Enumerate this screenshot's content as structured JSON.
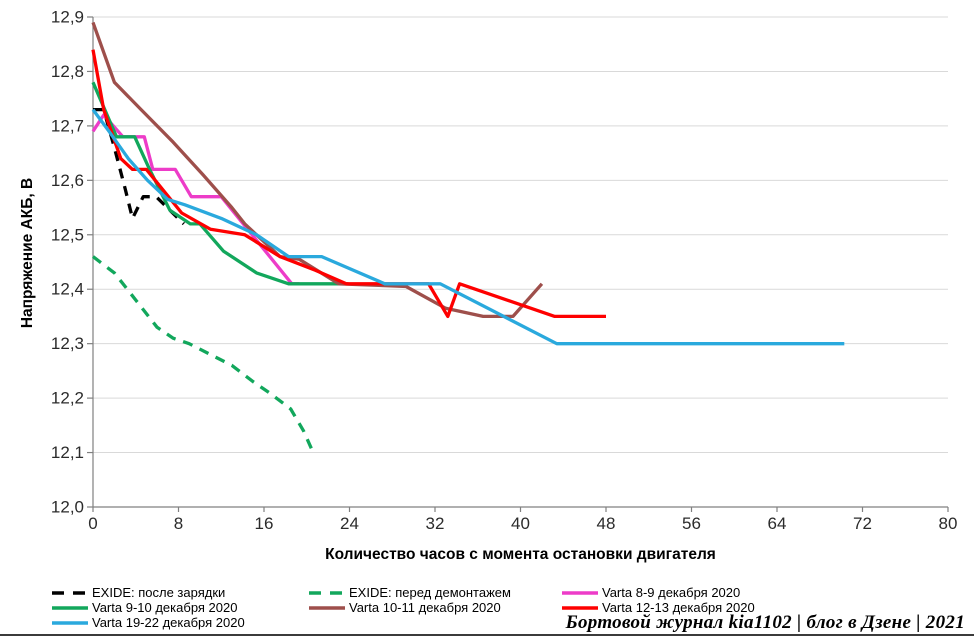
{
  "attribution": "Бортовой журнал kia1102 | блог в Дзене | 2021",
  "colors": {
    "grid": "#d9d9d9",
    "axis": "#808080",
    "tick": "#2b2b2b",
    "background": "#ffffff"
  },
  "chart_data": {
    "type": "line",
    "title": "",
    "xlabel": "Количество часов с момента остановки двигателя",
    "ylabel": "Напряжение АКБ, В",
    "xlim": [
      0,
      80
    ],
    "ylim": [
      12.0,
      12.9
    ],
    "grid": "horizontal",
    "legend_position": "bottom-left",
    "x_ticks": [
      0,
      8,
      16,
      24,
      32,
      40,
      48,
      56,
      64,
      72,
      80
    ],
    "y_ticks": [
      {
        "v": 12.0,
        "label": "12,0"
      },
      {
        "v": 12.1,
        "label": "12,1"
      },
      {
        "v": 12.2,
        "label": "12,2"
      },
      {
        "v": 12.3,
        "label": "12,3"
      },
      {
        "v": 12.4,
        "label": "12,4"
      },
      {
        "v": 12.5,
        "label": "12,5"
      },
      {
        "v": 12.6,
        "label": "12,6"
      },
      {
        "v": 12.7,
        "label": "12,7"
      },
      {
        "v": 12.8,
        "label": "12,8"
      },
      {
        "v": 12.9,
        "label": "12,9"
      }
    ],
    "series": [
      {
        "name": "EXIDE: после зарядки",
        "color": "#000000",
        "dashed": true,
        "points": [
          [
            0,
            12.73
          ],
          [
            1,
            12.73
          ],
          [
            2,
            12.66
          ],
          [
            3,
            12.585
          ],
          [
            3.7,
            12.53
          ],
          [
            4.7,
            12.57
          ],
          [
            5.9,
            12.57
          ],
          [
            8.5,
            12.52
          ]
        ]
      },
      {
        "name": "EXIDE: перед демонтажем",
        "color": "#12a75c",
        "dashed": true,
        "points": [
          [
            0,
            12.46
          ],
          [
            2,
            12.43
          ],
          [
            4,
            12.38
          ],
          [
            6,
            12.33
          ],
          [
            7.5,
            12.31
          ],
          [
            9,
            12.3
          ],
          [
            11,
            12.28
          ],
          [
            13,
            12.26
          ],
          [
            15,
            12.23
          ],
          [
            16.5,
            12.21
          ],
          [
            18.5,
            12.18
          ],
          [
            19.7,
            12.14
          ],
          [
            20.6,
            12.1
          ]
        ]
      },
      {
        "name": "Varta 8-9 декабря 2020",
        "color": "#ed3cc8",
        "dashed": false,
        "points": [
          [
            0,
            12.69
          ],
          [
            1,
            12.72
          ],
          [
            2.8,
            12.68
          ],
          [
            4.8,
            12.68
          ],
          [
            5.6,
            12.62
          ],
          [
            7.7,
            12.62
          ],
          [
            9.2,
            12.57
          ],
          [
            12,
            12.57
          ],
          [
            18.6,
            12.41
          ],
          [
            19.3,
            12.41
          ]
        ]
      },
      {
        "name": "Varta 9-10 декабря 2020",
        "color": "#12a75c",
        "dashed": false,
        "points": [
          [
            0,
            12.78
          ],
          [
            2.2,
            12.68
          ],
          [
            3.9,
            12.68
          ],
          [
            5.3,
            12.62
          ],
          [
            7.2,
            12.545
          ],
          [
            9.1,
            12.52
          ],
          [
            10,
            12.52
          ],
          [
            12.2,
            12.47
          ],
          [
            15.3,
            12.43
          ],
          [
            18.3,
            12.41
          ],
          [
            23.9,
            12.41
          ]
        ]
      },
      {
        "name": "Varta 10-11 декабря 2020",
        "color": "#9e4f4b",
        "dashed": false,
        "points": [
          [
            0,
            12.89
          ],
          [
            2,
            12.78
          ],
          [
            4.5,
            12.73
          ],
          [
            7.5,
            12.67
          ],
          [
            10.3,
            12.61
          ],
          [
            13,
            12.55
          ],
          [
            14.2,
            12.52
          ],
          [
            17.5,
            12.46
          ],
          [
            19.3,
            12.455
          ],
          [
            23,
            12.41
          ],
          [
            29.3,
            12.405
          ],
          [
            33,
            12.365
          ],
          [
            36.5,
            12.35
          ],
          [
            39.3,
            12.35
          ],
          [
            42,
            12.41
          ]
        ]
      },
      {
        "name": "Varta 12-13 декабря 2020",
        "color": "#fe0000",
        "dashed": false,
        "points": [
          [
            0,
            12.84
          ],
          [
            1,
            12.73
          ],
          [
            2.6,
            12.64
          ],
          [
            3.7,
            12.62
          ],
          [
            5,
            12.62
          ],
          [
            8.3,
            12.54
          ],
          [
            11,
            12.51
          ],
          [
            14.2,
            12.5
          ],
          [
            17.5,
            12.46
          ],
          [
            20.8,
            12.435
          ],
          [
            23.7,
            12.41
          ],
          [
            31.4,
            12.41
          ],
          [
            33.2,
            12.35
          ],
          [
            34.3,
            12.41
          ],
          [
            43.2,
            12.35
          ],
          [
            48,
            12.35
          ]
        ]
      },
      {
        "name": "Varta 19-22 декабря 2020",
        "color": "#2aa9dd",
        "dashed": false,
        "points": [
          [
            0,
            12.73
          ],
          [
            1.5,
            12.69
          ],
          [
            3.3,
            12.64
          ],
          [
            5.1,
            12.6
          ],
          [
            7,
            12.565
          ],
          [
            8.6,
            12.555
          ],
          [
            12,
            12.53
          ],
          [
            15.3,
            12.5
          ],
          [
            18.3,
            12.46
          ],
          [
            21.4,
            12.46
          ],
          [
            27.3,
            12.41
          ],
          [
            32.5,
            12.41
          ],
          [
            43.4,
            12.3
          ],
          [
            70.3,
            12.3
          ]
        ]
      }
    ]
  }
}
